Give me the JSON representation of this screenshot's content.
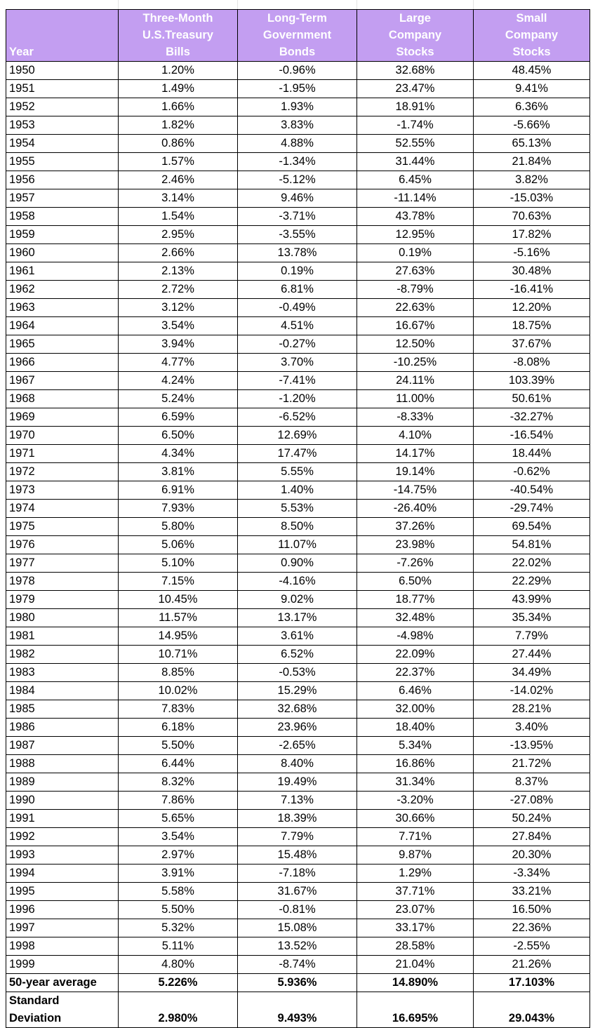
{
  "table": {
    "headers": {
      "year": "Year",
      "tbills": [
        "Three-Month",
        "U.S.Treasury",
        "Bills"
      ],
      "bonds": [
        "Long-Term",
        "Government",
        "Bonds"
      ],
      "large": [
        "Large",
        "Company",
        "Stocks"
      ],
      "small": [
        "Small",
        "Company",
        "Stocks"
      ]
    },
    "rows": [
      [
        "1950",
        "1.20%",
        "-0.96%",
        "32.68%",
        "48.45%"
      ],
      [
        "1951",
        "1.49%",
        "-1.95%",
        "23.47%",
        "9.41%"
      ],
      [
        "1952",
        "1.66%",
        "1.93%",
        "18.91%",
        "6.36%"
      ],
      [
        "1953",
        "1.82%",
        "3.83%",
        "-1.74%",
        "-5.66%"
      ],
      [
        "1954",
        "0.86%",
        "4.88%",
        "52.55%",
        "65.13%"
      ],
      [
        "1955",
        "1.57%",
        "-1.34%",
        "31.44%",
        "21.84%"
      ],
      [
        "1956",
        "2.46%",
        "-5.12%",
        "6.45%",
        "3.82%"
      ],
      [
        "1957",
        "3.14%",
        "9.46%",
        "-11.14%",
        "-15.03%"
      ],
      [
        "1958",
        "1.54%",
        "-3.71%",
        "43.78%",
        "70.63%"
      ],
      [
        "1959",
        "2.95%",
        "-3.55%",
        "12.95%",
        "17.82%"
      ],
      [
        "1960",
        "2.66%",
        "13.78%",
        "0.19%",
        "-5.16%"
      ],
      [
        "1961",
        "2.13%",
        "0.19%",
        "27.63%",
        "30.48%"
      ],
      [
        "1962",
        "2.72%",
        "6.81%",
        "-8.79%",
        "-16.41%"
      ],
      [
        "1963",
        "3.12%",
        "-0.49%",
        "22.63%",
        "12.20%"
      ],
      [
        "1964",
        "3.54%",
        "4.51%",
        "16.67%",
        "18.75%"
      ],
      [
        "1965",
        "3.94%",
        "-0.27%",
        "12.50%",
        "37.67%"
      ],
      [
        "1966",
        "4.77%",
        "3.70%",
        "-10.25%",
        "-8.08%"
      ],
      [
        "1967",
        "4.24%",
        "-7.41%",
        "24.11%",
        "103.39%"
      ],
      [
        "1968",
        "5.24%",
        "-1.20%",
        "11.00%",
        "50.61%"
      ],
      [
        "1969",
        "6.59%",
        "-6.52%",
        "-8.33%",
        "-32.27%"
      ],
      [
        "1970",
        "6.50%",
        "12.69%",
        "4.10%",
        "-16.54%"
      ],
      [
        "1971",
        "4.34%",
        "17.47%",
        "14.17%",
        "18.44%"
      ],
      [
        "1972",
        "3.81%",
        "5.55%",
        "19.14%",
        "-0.62%"
      ],
      [
        "1973",
        "6.91%",
        "1.40%",
        "-14.75%",
        "-40.54%"
      ],
      [
        "1974",
        "7.93%",
        "5.53%",
        "-26.40%",
        "-29.74%"
      ],
      [
        "1975",
        "5.80%",
        "8.50%",
        "37.26%",
        "69.54%"
      ],
      [
        "1976",
        "5.06%",
        "11.07%",
        "23.98%",
        "54.81%"
      ],
      [
        "1977",
        "5.10%",
        "0.90%",
        "-7.26%",
        "22.02%"
      ],
      [
        "1978",
        "7.15%",
        "-4.16%",
        "6.50%",
        "22.29%"
      ],
      [
        "1979",
        "10.45%",
        "9.02%",
        "18.77%",
        "43.99%"
      ],
      [
        "1980",
        "11.57%",
        "13.17%",
        "32.48%",
        "35.34%"
      ],
      [
        "1981",
        "14.95%",
        "3.61%",
        "-4.98%",
        "7.79%"
      ],
      [
        "1982",
        "10.71%",
        "6.52%",
        "22.09%",
        "27.44%"
      ],
      [
        "1983",
        "8.85%",
        "-0.53%",
        "22.37%",
        "34.49%"
      ],
      [
        "1984",
        "10.02%",
        "15.29%",
        "6.46%",
        "-14.02%"
      ],
      [
        "1985",
        "7.83%",
        "32.68%",
        "32.00%",
        "28.21%"
      ],
      [
        "1986",
        "6.18%",
        "23.96%",
        "18.40%",
        "3.40%"
      ],
      [
        "1987",
        "5.50%",
        "-2.65%",
        "5.34%",
        "-13.95%"
      ],
      [
        "1988",
        "6.44%",
        "8.40%",
        "16.86%",
        "21.72%"
      ],
      [
        "1989",
        "8.32%",
        "19.49%",
        "31.34%",
        "8.37%"
      ],
      [
        "1990",
        "7.86%",
        "7.13%",
        "-3.20%",
        "-27.08%"
      ],
      [
        "1991",
        "5.65%",
        "18.39%",
        "30.66%",
        "50.24%"
      ],
      [
        "1992",
        "3.54%",
        "7.79%",
        "7.71%",
        "27.84%"
      ],
      [
        "1993",
        "2.97%",
        "15.48%",
        "9.87%",
        "20.30%"
      ],
      [
        "1994",
        "3.91%",
        "-7.18%",
        "1.29%",
        "-3.34%"
      ],
      [
        "1995",
        "5.58%",
        "31.67%",
        "37.71%",
        "33.21%"
      ],
      [
        "1996",
        "5.50%",
        "-0.81%",
        "23.07%",
        "16.50%"
      ],
      [
        "1997",
        "5.32%",
        "15.08%",
        "33.17%",
        "22.36%"
      ],
      [
        "1998",
        "5.11%",
        "13.52%",
        "28.58%",
        "-2.55%"
      ],
      [
        "1999",
        "4.80%",
        "-8.74%",
        "21.04%",
        "21.26%"
      ]
    ],
    "average": {
      "label": "50-year average",
      "values": [
        "5.226%",
        "5.936%",
        "14.890%",
        "17.103%"
      ]
    },
    "stddev": {
      "label": [
        "Standard",
        "Deviation"
      ],
      "values": [
        "2.980%",
        "9.493%",
        "16.695%",
        "29.043%"
      ]
    }
  },
  "colors": {
    "header_bg": "#c39ef1",
    "header_text": "#ffffff"
  }
}
